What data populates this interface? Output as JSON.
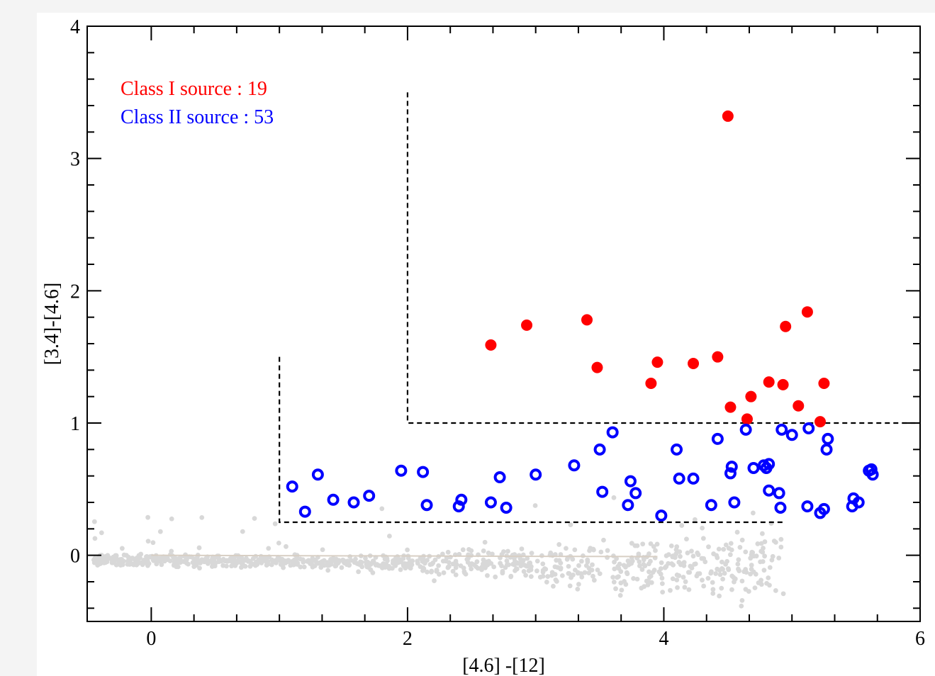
{
  "chart_data": {
    "type": "scatter",
    "title": "",
    "xlabel": "[4.6] -[12]",
    "ylabel": "[3.4]-[4.6]",
    "xlim": [
      -0.5,
      6
    ],
    "ylim": [
      -0.5,
      4
    ],
    "x_ticks": [
      "0",
      "2",
      "4",
      "6"
    ],
    "y_ticks": [
      "0",
      "1",
      "2",
      "3",
      "4"
    ],
    "legend_placement": "top-left",
    "legend": [
      {
        "text": "Class I source :  19",
        "color": "#ff0000"
      },
      {
        "text": "Class II source : 53",
        "color": "#0000ff"
      }
    ],
    "boundaries": [
      {
        "name": "class-I-boundary",
        "points": [
          [
            2.0,
            3.5
          ],
          [
            2.0,
            1.0
          ],
          [
            6.0,
            1.0
          ]
        ]
      },
      {
        "name": "class-II-boundary",
        "points": [
          [
            1.0,
            1.5
          ],
          [
            1.0,
            0.25
          ],
          [
            4.95,
            0.25
          ]
        ]
      }
    ],
    "series": [
      {
        "name": "Class I source",
        "color": "#ff0000",
        "marker": "filled-circle",
        "points": [
          [
            4.5,
            3.32
          ],
          [
            2.65,
            1.59
          ],
          [
            2.93,
            1.74
          ],
          [
            3.4,
            1.78
          ],
          [
            3.48,
            1.42
          ],
          [
            3.9,
            1.3
          ],
          [
            3.95,
            1.46
          ],
          [
            4.23,
            1.45
          ],
          [
            4.42,
            1.5
          ],
          [
            4.52,
            1.12
          ],
          [
            4.65,
            1.03
          ],
          [
            4.68,
            1.2
          ],
          [
            4.82,
            1.31
          ],
          [
            4.93,
            1.29
          ],
          [
            4.95,
            1.73
          ],
          [
            5.05,
            1.13
          ],
          [
            5.12,
            1.84
          ],
          [
            5.25,
            1.3
          ],
          [
            5.22,
            1.01
          ]
        ]
      },
      {
        "name": "Class II source",
        "color": "#0000ff",
        "marker": "ring",
        "points": [
          [
            1.1,
            0.52
          ],
          [
            1.2,
            0.33
          ],
          [
            1.3,
            0.61
          ],
          [
            1.42,
            0.42
          ],
          [
            1.58,
            0.4
          ],
          [
            1.7,
            0.45
          ],
          [
            1.95,
            0.64
          ],
          [
            2.12,
            0.63
          ],
          [
            2.15,
            0.38
          ],
          [
            2.4,
            0.37
          ],
          [
            2.42,
            0.42
          ],
          [
            2.65,
            0.4
          ],
          [
            2.72,
            0.59
          ],
          [
            2.77,
            0.36
          ],
          [
            3.0,
            0.61
          ],
          [
            3.3,
            0.68
          ],
          [
            3.5,
            0.8
          ],
          [
            3.52,
            0.48
          ],
          [
            3.6,
            0.93
          ],
          [
            3.72,
            0.38
          ],
          [
            3.74,
            0.56
          ],
          [
            3.78,
            0.47
          ],
          [
            3.98,
            0.3
          ],
          [
            4.1,
            0.8
          ],
          [
            4.12,
            0.58
          ],
          [
            4.23,
            0.58
          ],
          [
            4.37,
            0.38
          ],
          [
            4.42,
            0.88
          ],
          [
            4.52,
            0.62
          ],
          [
            4.53,
            0.67
          ],
          [
            4.55,
            0.4
          ],
          [
            4.64,
            0.95
          ],
          [
            4.8,
            0.66
          ],
          [
            4.82,
            0.69
          ],
          [
            4.82,
            0.49
          ],
          [
            4.9,
            0.47
          ],
          [
            4.91,
            0.36
          ],
          [
            4.92,
            0.95
          ],
          [
            5.0,
            0.91
          ],
          [
            5.12,
            0.37
          ],
          [
            5.13,
            0.96
          ],
          [
            5.22,
            0.32
          ],
          [
            5.25,
            0.35
          ],
          [
            5.27,
            0.8
          ],
          [
            5.28,
            0.88
          ],
          [
            5.47,
            0.37
          ],
          [
            5.48,
            0.43
          ],
          [
            5.52,
            0.4
          ],
          [
            5.6,
            0.64
          ],
          [
            5.63,
            0.61
          ],
          [
            5.62,
            0.65
          ],
          [
            4.78,
            0.68
          ],
          [
            4.7,
            0.66
          ]
        ]
      }
    ]
  },
  "colors": {
    "axis": "#000000",
    "background_points": "#d8d8d8",
    "main_sequence_line": "#d8cfc4",
    "boundary": "#000000"
  }
}
